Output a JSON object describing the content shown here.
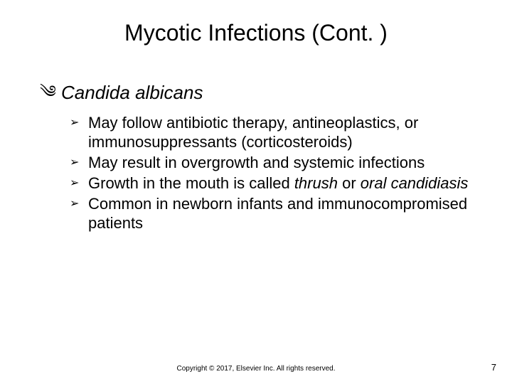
{
  "colors": {
    "background": "#ffffff",
    "text": "#000000"
  },
  "typography": {
    "family": "Arial",
    "title_fontsize": 32,
    "level1_fontsize": 26,
    "level2_fontsize": 22,
    "footer_fontsize": 10,
    "pagenum_fontsize": 13
  },
  "title": "Mycotic Infections (Cont. )",
  "level1": {
    "bullet": "༄",
    "text": "Candida albicans"
  },
  "bullets": [
    {
      "marker": "➢",
      "html": "May follow antibiotic therapy, antineoplastics, or immunosuppressants (corticosteroids)"
    },
    {
      "marker": "➢",
      "html": "May result in overgrowth and systemic infections"
    },
    {
      "marker": "➢",
      "html": "Growth in the mouth is called <i>thrush</i> or <i>oral candidiasis</i>"
    },
    {
      "marker": "➢",
      "html": "Common in newborn infants and immunocompromised patients"
    }
  ],
  "footer": "Copyright © 2017, Elsevier Inc. All rights reserved.",
  "page_number": "7"
}
